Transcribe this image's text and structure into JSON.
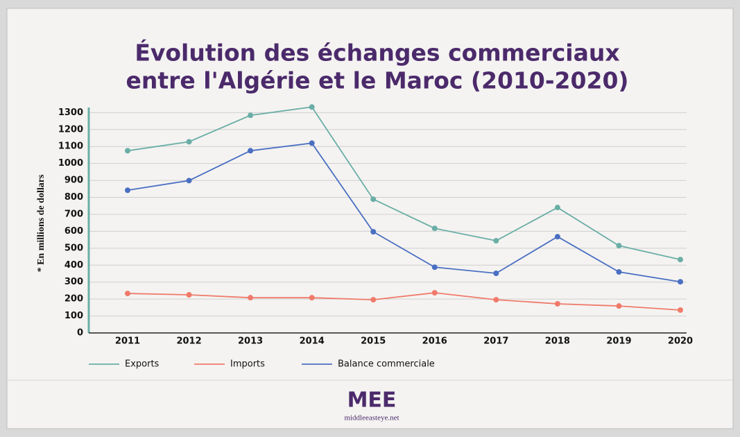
{
  "chart_data": {
    "type": "line",
    "title": [
      "Évolution des échanges commerciaux",
      "entre l'Algérie et le Maroc (2010-2020)"
    ],
    "y_label": "* En millions de dollars",
    "categories": [
      "2011",
      "2012",
      "2013",
      "2014",
      "2015",
      "2016",
      "2017",
      "2018",
      "2019",
      "2020"
    ],
    "series": [
      {
        "name": "Exports",
        "color": "#6aaea6",
        "values": [
          1075,
          1128,
          1284,
          1333,
          789,
          617,
          544,
          740,
          515,
          433
        ]
      },
      {
        "name": "Imports",
        "color": "#f07a6a",
        "values": [
          233,
          225,
          208,
          208,
          196,
          237,
          196,
          172,
          159,
          135
        ]
      },
      {
        "name": "Balance commerciale",
        "color": "#4a6fc2",
        "values": [
          842,
          899,
          1075,
          1120,
          597,
          388,
          352,
          568,
          360,
          302
        ]
      }
    ],
    "ylim": [
      0,
      1330
    ],
    "yticks": [
      0,
      100,
      200,
      300,
      400,
      500,
      600,
      700,
      800,
      900,
      1000,
      1100,
      1200,
      1300
    ],
    "grid": true,
    "legend": "bottom",
    "logo": "MEE",
    "site": "middleeasteye.net"
  }
}
